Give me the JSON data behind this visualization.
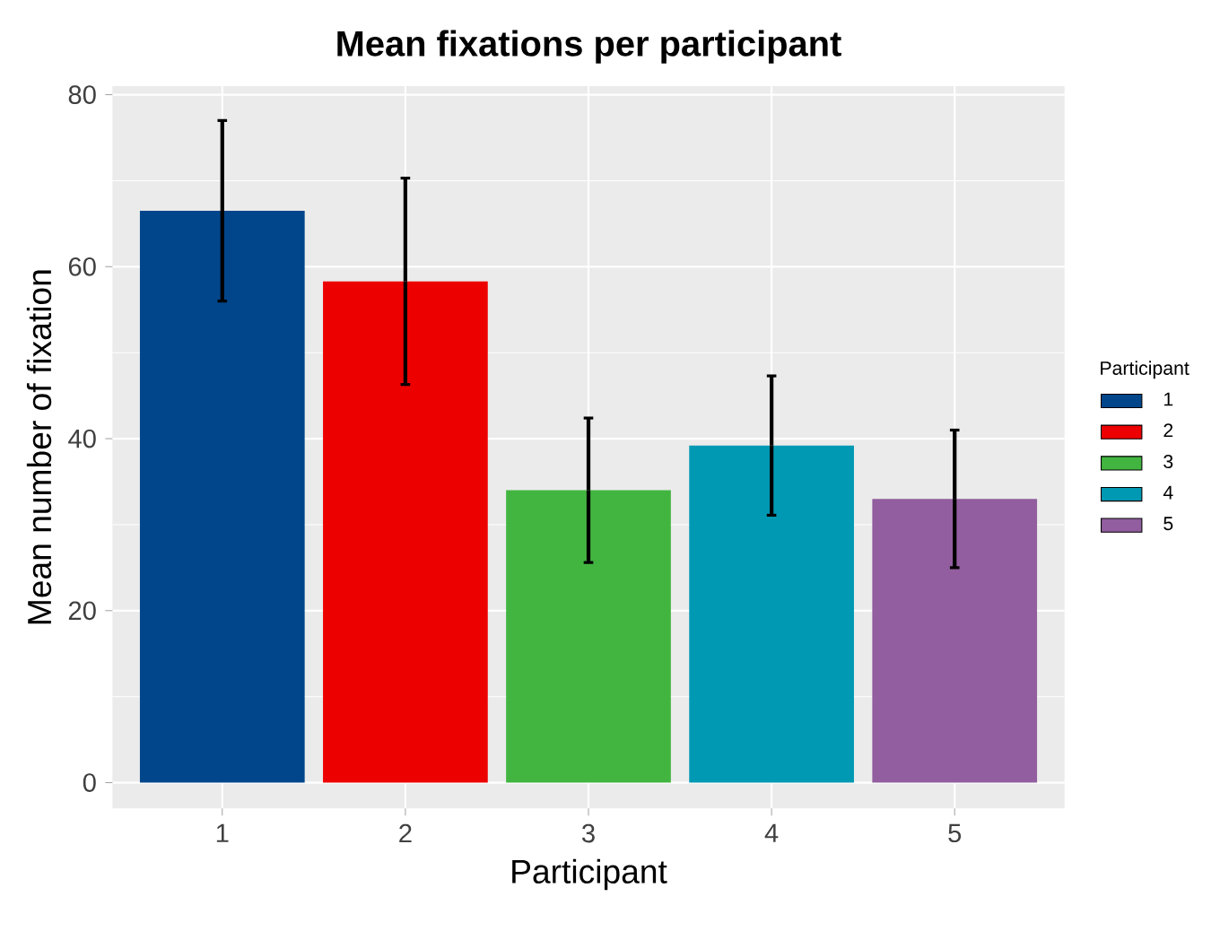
{
  "chart_data": {
    "type": "bar",
    "title": "Mean fixations per participant",
    "xlabel": "Participant",
    "ylabel": "Mean number of fixation",
    "legend_title": "Participant",
    "categories": [
      "1",
      "2",
      "3",
      "4",
      "5"
    ],
    "series": [
      {
        "name": "1",
        "color": "#01468b",
        "values": [
          66.5,
          null,
          null,
          null,
          null
        ],
        "errors": [
          10.5,
          null,
          null,
          null,
          null
        ]
      },
      {
        "name": "2",
        "color": "#ed0000",
        "values": [
          null,
          58.3,
          null,
          null,
          null
        ],
        "errors": [
          null,
          12.0,
          null,
          null,
          null
        ]
      },
      {
        "name": "3",
        "color": "#42b540",
        "values": [
          null,
          null,
          34.0,
          null,
          null
        ],
        "errors": [
          null,
          null,
          8.4,
          null,
          null
        ]
      },
      {
        "name": "4",
        "color": "#0099b4",
        "values": [
          null,
          null,
          null,
          39.2,
          null
        ],
        "errors": [
          null,
          null,
          null,
          8.1,
          null
        ]
      },
      {
        "name": "5",
        "color": "#925e9f",
        "values": [
          null,
          null,
          null,
          null,
          33.0
        ],
        "errors": [
          null,
          null,
          null,
          null,
          8.0
        ]
      }
    ],
    "ylim": [
      -3,
      81
    ],
    "yticks": [
      0,
      20,
      40,
      60,
      80
    ],
    "grid": true,
    "legend": "right"
  }
}
